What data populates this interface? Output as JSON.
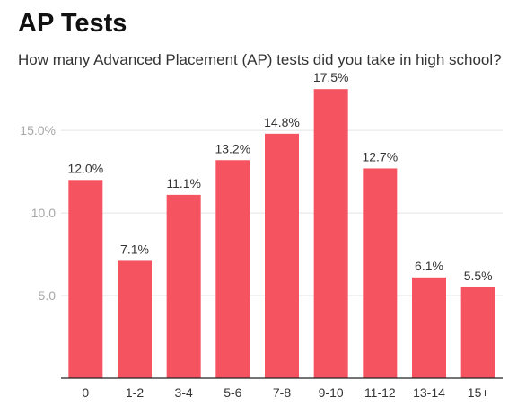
{
  "chart_data": {
    "type": "bar",
    "title": "AP Tests",
    "subtitle": "How many Advanced Placement (AP) tests did you take in high school?",
    "xlabel": "",
    "ylabel": "",
    "categories": [
      "0",
      "1-2",
      "3-4",
      "5-6",
      "7-8",
      "9-10",
      "11-12",
      "13-14",
      "15+"
    ],
    "values": [
      12.0,
      7.1,
      11.1,
      13.2,
      14.8,
      17.5,
      12.7,
      6.1,
      5.5
    ],
    "value_labels": [
      "12.0%",
      "7.1%",
      "11.1%",
      "13.2%",
      "14.8%",
      "17.5%",
      "12.7%",
      "6.1%",
      "5.5%"
    ],
    "ylim": [
      0,
      18
    ],
    "yticks": [
      5,
      10,
      15
    ],
    "ytick_labels": [
      "5.0",
      "10.0",
      "15.0%"
    ],
    "grid": true,
    "bar_color": "#f4535f"
  }
}
